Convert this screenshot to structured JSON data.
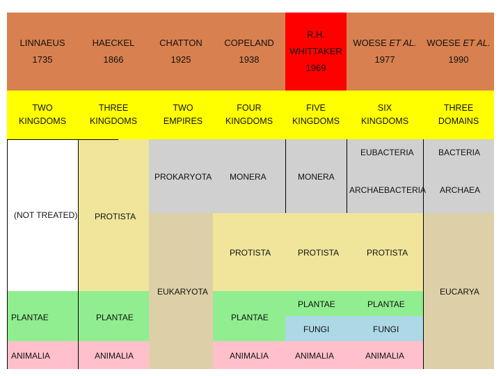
{
  "columns": [
    {
      "name": "LINNAEUS",
      "year": "1735",
      "kingdoms": "TWO KINGDOMS"
    },
    {
      "name": "HAECKEL",
      "year": "1866",
      "kingdoms": "THREE KINGDOMS"
    },
    {
      "name": "CHATTON",
      "year": "1925",
      "kingdoms": "TWO EMPIRES"
    },
    {
      "name": "COPELAND",
      "year": "1938",
      "kingdoms": "FOUR KINGDOMS"
    },
    {
      "name": "R.H. WHITTAKER",
      "name_line1": "R.H.",
      "name_line2": "WHITTAKER",
      "year": "1969",
      "kingdoms": "FIVE KINGDOMS"
    },
    {
      "name": "WOESE ET AL.",
      "name_prefix": "WOESE ",
      "name_italic": "ET AL.",
      "year": "1977",
      "kingdoms": "SIX KINGDOMS"
    },
    {
      "name": "WOESE ET AL.",
      "name_prefix": "WOESE ",
      "name_italic": "ET AL.",
      "year": "1990",
      "kingdoms": "THREE DOMAINS"
    }
  ],
  "colors": {
    "header": "#d8804f",
    "header_highlight": "#ff0000",
    "kingdoms_row": "#ffff00",
    "prokaryota": "#d0d0d0",
    "protista_yellow": "#f0e59a",
    "eukaryota_tan": "#ddd0a8",
    "plantae": "#90ee90",
    "fungi": "#add8e6",
    "animalia": "#ffc0cb"
  },
  "labels": {
    "not_treated": "(NOT TREATED)",
    "protista": "PROTISTA",
    "prokaryota": "PROKARYOTA",
    "eukaryota": "EUKARYOTA",
    "monera": "MONERA",
    "eubacteria": "EUBACTERIA",
    "archaebacteria": "ARCHAEBACTERIA",
    "bacteria": "BACTERIA",
    "archaea": "ARCHAEA",
    "eucarya": "EUCARYA",
    "plantae": "PLANTAE",
    "fungi": "FUNGI",
    "animalia": "ANIMALIA"
  }
}
